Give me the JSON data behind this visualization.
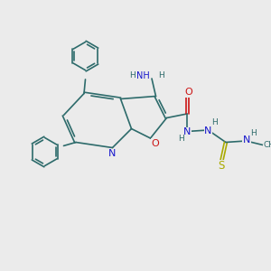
{
  "bg_color": "#ebebeb",
  "bond_color": "#2d6b6b",
  "N_color": "#1515cc",
  "O_color": "#cc1515",
  "S_color": "#aaaa00",
  "font_size": 6.5,
  "lw": 1.2,
  "xlim": [
    0,
    10
  ],
  "ylim": [
    0,
    10
  ]
}
